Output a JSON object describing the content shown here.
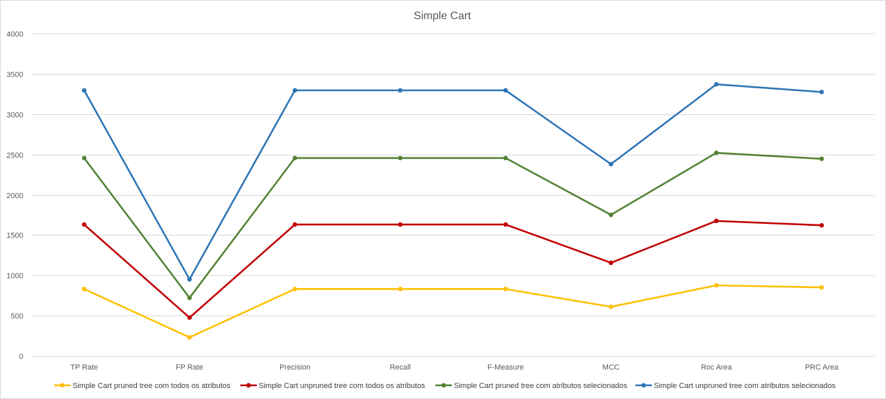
{
  "chart_data": {
    "type": "line",
    "title": "Simple Cart",
    "xlabel": "",
    "ylabel": "",
    "categories": [
      "TP Rate",
      "FP Rate",
      "Precision",
      "Recall",
      "F-Measure",
      "MCC",
      "Roc Area",
      "PRC Area"
    ],
    "ylim": [
      0,
      4000
    ],
    "yticks": [
      0,
      500,
      1000,
      1500,
      2000,
      2500,
      3000,
      3500,
      4000
    ],
    "grid": true,
    "legend_position": "bottom",
    "series": [
      {
        "name": "Simple Cart pruned tree com todos os atributos",
        "color": "#FFC000",
        "values": [
          830,
          230,
          830,
          830,
          830,
          610,
          875,
          850
        ]
      },
      {
        "name": "Simple Cart unpruned tree com todos os atributos",
        "color": "#C00000",
        "values": [
          1630,
          475,
          1630,
          1630,
          1630,
          1155,
          1675,
          1620
        ]
      },
      {
        "name": "Simple Cart pruned tree com atributos selecionados",
        "color": "#548235",
        "values": [
          2455,
          720,
          2455,
          2455,
          2455,
          1750,
          2520,
          2445
        ]
      },
      {
        "name": "Simple Cart unpruned tree com atributos selecionados",
        "color": "#2E75B6",
        "values": [
          3295,
          950,
          3295,
          3295,
          3295,
          2380,
          3370,
          3275
        ]
      }
    ]
  }
}
